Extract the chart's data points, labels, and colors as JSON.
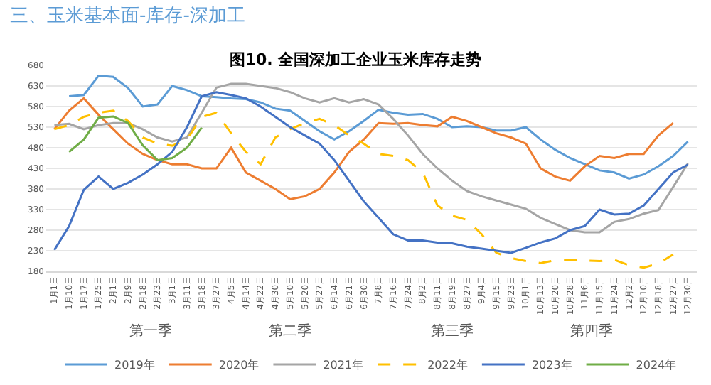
{
  "chart_data": {
    "type": "line",
    "title": "图10. 全国深加工企业玉米库存走势",
    "annotations": [
      "三、玉米基本面-库存-深加工",
      "第一季",
      "第二季",
      "第三季",
      "第四季"
    ],
    "categories": [
      "1月1日",
      "1月10日",
      "1月17日",
      "1月25日",
      "2月1日",
      "2月9日",
      "2月18日",
      "2月23日",
      "3月1日",
      "3月11日",
      "3月18日",
      "3月27日",
      "4月5日",
      "4月14日",
      "4月22日",
      "4月30日",
      "5月10日",
      "5月20日",
      "5月27日",
      "6月14日",
      "6月21日",
      "6月30日",
      "7月8日",
      "7月16日",
      "7月24日",
      "8月2日",
      "8月11日",
      "8月19日",
      "8月27日",
      "9月4日",
      "9月15日",
      "9月23日",
      "10月1日",
      "10月13日",
      "10月20日",
      "10月28日",
      "11月6日",
      "11月15日",
      "11月24日",
      "12月2日",
      "12月10日",
      "12月18日",
      "12月27日",
      "12月30日"
    ],
    "series": [
      {
        "name": "2019年",
        "color": "#5b9bd5",
        "values": [
          null,
          605,
          608,
          655,
          652,
          625,
          580,
          585,
          630,
          620,
          605,
          603,
          600,
          598,
          590,
          575,
          570,
          545,
          520,
          500,
          520,
          545,
          572,
          565,
          560,
          562,
          550,
          530,
          532,
          530,
          522,
          522,
          530,
          500,
          475,
          455,
          440,
          425,
          420,
          405,
          415,
          435,
          460,
          495
        ]
      },
      {
        "name": "2020年",
        "color": "#ed7d31",
        "values": [
          525,
          570,
          600,
          560,
          525,
          490,
          465,
          450,
          440,
          440,
          430,
          430,
          480,
          420,
          400,
          380,
          355,
          362,
          380,
          420,
          470,
          500,
          540,
          538,
          540,
          535,
          532,
          555,
          545,
          530,
          515,
          505,
          490,
          430,
          410,
          400,
          435,
          460,
          455,
          465,
          465,
          510,
          540,
          null
        ]
      },
      {
        "name": "2021年",
        "color": "#a5a5a5",
        "values": [
          535,
          538,
          525,
          535,
          540,
          540,
          525,
          505,
          495,
          505,
          565,
          626,
          635,
          635,
          630,
          625,
          615,
          600,
          590,
          600,
          590,
          598,
          585,
          550,
          510,
          465,
          430,
          400,
          375,
          362,
          352,
          342,
          332,
          310,
          295,
          280,
          275,
          275,
          300,
          307,
          320,
          329,
          385,
          442
        ]
      },
      {
        "name": "2022年",
        "color": "#ffc000",
        "line_style": "dashed",
        "values": [
          525,
          535,
          555,
          565,
          570,
          545,
          505,
          490,
          485,
          500,
          555,
          565,
          515,
          470,
          440,
          505,
          525,
          540,
          550,
          535,
          510,
          490,
          465,
          460,
          450,
          420,
          340,
          315,
          305,
          270,
          225,
          212,
          205,
          200,
          207,
          207,
          206,
          205,
          208,
          195,
          189,
          199,
          221,
          null
        ]
      },
      {
        "name": "2023年",
        "color": "#4472c4",
        "values": [
          232,
          290,
          378,
          410,
          380,
          395,
          415,
          440,
          470,
          530,
          605,
          615,
          608,
          600,
          580,
          555,
          530,
          510,
          490,
          450,
          400,
          350,
          310,
          270,
          255,
          255,
          250,
          248,
          240,
          235,
          230,
          225,
          237,
          250,
          260,
          280,
          290,
          330,
          318,
          320,
          340,
          380,
          420,
          439
        ]
      },
      {
        "name": "2024年",
        "color": "#70ad47",
        "values": [
          null,
          470,
          500,
          553,
          556,
          540,
          486,
          450,
          455,
          480,
          529,
          null,
          null,
          null,
          null,
          null,
          null,
          null,
          null,
          null,
          null,
          null,
          null,
          null,
          null,
          null,
          null,
          null,
          null,
          null,
          null,
          null,
          null,
          null,
          null,
          null,
          null,
          null,
          null,
          null,
          null,
          null,
          null,
          null
        ]
      }
    ],
    "ylim": [
      180,
      680
    ],
    "yticks": [
      180,
      230,
      280,
      330,
      380,
      430,
      480,
      530,
      580,
      630,
      680
    ],
    "grid": "y",
    "legend": "bottom",
    "marker": "none",
    "line_style": "solid"
  }
}
